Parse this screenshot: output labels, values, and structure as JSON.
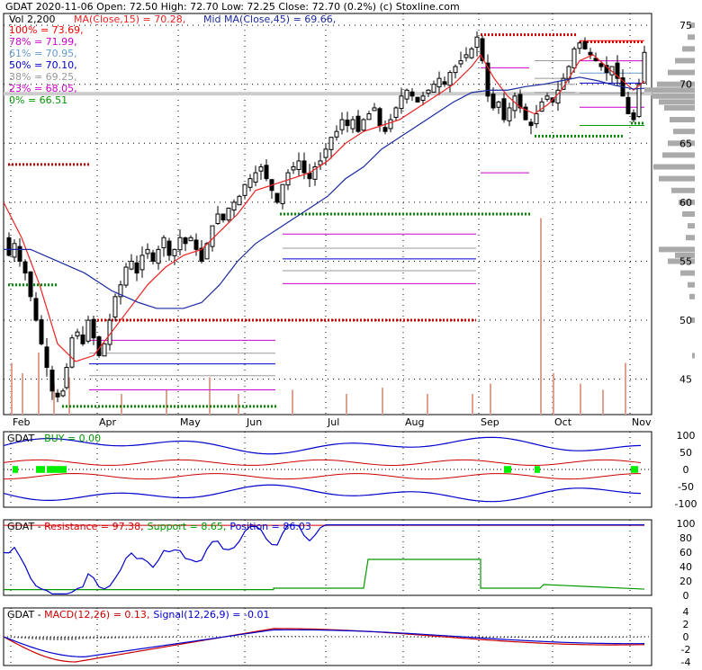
{
  "header": {
    "line1": "GDAT  2020-11-06 Open: 72.50  High: 72.70  Low: 72.25  Close: 72.70 (0.2%)  (c) Stoxline.com",
    "vol": "Vol 2,200",
    "ma15": "MA(Close,15) = 70.28,",
    "ma45": "Mid MA(Close,45) = 69.66,"
  },
  "fib_levels": [
    {
      "label": "100% = 73.69,",
      "value": 73.69,
      "color": "#ff0000"
    },
    {
      "label": "78% = 71.99,",
      "value": 71.99,
      "color": "#cc00cc"
    },
    {
      "label": "61% = 70.95,",
      "value": 70.95,
      "color": "#6699cc"
    },
    {
      "label": "50% = 70.10,",
      "value": 70.1,
      "color": "#0000cc"
    },
    {
      "label": "38% = 69.25,",
      "value": 69.25,
      "color": "#999999"
    },
    {
      "label": "23% = 68.05,",
      "value": 68.05,
      "color": "#cc00cc"
    },
    {
      "label": "0% = 66.51",
      "value": 66.51,
      "color": "#009900"
    }
  ],
  "colors": {
    "ma15": "#ee2222",
    "ma45": "#1a2aa0",
    "support": "#008800",
    "resistance": "#cc0000",
    "volume": "#e0a090",
    "profile": "#aaaaaa"
  },
  "x_months": [
    "Feb",
    "Apr",
    "May",
    "Jun",
    "Jul",
    "Aug",
    "Sep",
    "Oct",
    "Nov"
  ],
  "main_y_ticks": [
    "75",
    "70",
    "65",
    "60",
    "55",
    "50",
    "45"
  ],
  "buy_panel": {
    "title_a": "GDAT - ",
    "title_b": "BUY = 0.00",
    "ticks": [
      "100",
      "50",
      "0",
      "-50",
      "-100"
    ]
  },
  "res_panel": {
    "title_a": "GDAT - ",
    "res": "Resistance = 97.38,",
    "sup": "Support = 8.65,",
    "pos": "Position = 86.03",
    "ticks": [
      "100",
      "80",
      "60",
      "40",
      "20",
      "0"
    ]
  },
  "macd_panel": {
    "title_a": "GDAT - ",
    "macd": "MACD(12,26) = 0.13,",
    "sig": "Signal(12,26,9) = -0.01",
    "ticks": [
      "4",
      "2",
      "0",
      "-2",
      "-4"
    ]
  },
  "chart_data": {
    "type": "candlestick",
    "ylim": [
      42,
      76
    ],
    "close_path": [
      [
        0,
        57
      ],
      [
        6,
        55.5
      ],
      [
        12,
        56.5
      ],
      [
        18,
        55
      ],
      [
        24,
        54
      ],
      [
        30,
        52
      ],
      [
        36,
        50
      ],
      [
        42,
        48
      ],
      [
        48,
        46
      ],
      [
        54,
        44
      ],
      [
        60,
        43.5
      ],
      [
        66,
        44
      ],
      [
        70,
        46
      ],
      [
        76,
        48.5
      ],
      [
        82,
        49
      ],
      [
        88,
        48
      ],
      [
        94,
        50
      ],
      [
        100,
        48.5
      ],
      [
        106,
        47
      ],
      [
        112,
        48
      ],
      [
        118,
        50
      ],
      [
        124,
        52
      ],
      [
        130,
        53
      ],
      [
        136,
        54.5
      ],
      [
        142,
        55
      ],
      [
        148,
        54
      ],
      [
        154,
        55.5
      ],
      [
        160,
        56
      ],
      [
        166,
        55
      ],
      [
        172,
        56
      ],
      [
        178,
        57
      ],
      [
        184,
        55.5
      ],
      [
        190,
        56
      ],
      [
        196,
        57
      ],
      [
        202,
        56.5
      ],
      [
        208,
        57
      ],
      [
        214,
        56
      ],
      [
        220,
        55
      ],
      [
        226,
        56.5
      ],
      [
        232,
        58
      ],
      [
        238,
        59
      ],
      [
        244,
        58.5
      ],
      [
        250,
        59.5
      ],
      [
        256,
        60
      ],
      [
        262,
        60.5
      ],
      [
        268,
        61.5
      ],
      [
        274,
        62
      ],
      [
        280,
        62.5
      ],
      [
        286,
        63
      ],
      [
        292,
        62
      ],
      [
        298,
        61
      ],
      [
        304,
        60
      ],
      [
        310,
        61.5
      ],
      [
        316,
        62.5
      ],
      [
        322,
        63
      ],
      [
        328,
        63.5
      ],
      [
        334,
        62.5
      ],
      [
        340,
        62
      ],
      [
        346,
        63
      ],
      [
        352,
        63.5
      ],
      [
        358,
        64.5
      ],
      [
        364,
        65.5
      ],
      [
        370,
        66
      ],
      [
        376,
        67
      ],
      [
        382,
        66.5
      ],
      [
        388,
        67
      ],
      [
        394,
        66
      ],
      [
        400,
        67
      ],
      [
        406,
        67.5
      ],
      [
        412,
        68
      ],
      [
        418,
        66.5
      ],
      [
        424,
        66
      ],
      [
        430,
        67
      ],
      [
        436,
        68
      ],
      [
        442,
        69
      ],
      [
        448,
        69.5
      ],
      [
        454,
        69
      ],
      [
        460,
        68.5
      ],
      [
        466,
        69
      ],
      [
        472,
        69.5
      ],
      [
        478,
        70
      ],
      [
        484,
        70.5
      ],
      [
        490,
        70
      ],
      [
        496,
        71
      ],
      [
        502,
        71.5
      ],
      [
        508,
        72
      ],
      [
        514,
        72.5
      ],
      [
        520,
        73
      ],
      [
        526,
        74
      ],
      [
        532,
        72
      ],
      [
        538,
        69
      ],
      [
        544,
        68
      ],
      [
        550,
        68.5
      ],
      [
        556,
        67
      ],
      [
        562,
        68
      ],
      [
        568,
        69
      ],
      [
        574,
        68
      ],
      [
        580,
        67
      ],
      [
        586,
        66.5
      ],
      [
        592,
        67.5
      ],
      [
        598,
        68.5
      ],
      [
        604,
        69
      ],
      [
        610,
        68.5
      ],
      [
        616,
        69.5
      ],
      [
        622,
        70.5
      ],
      [
        628,
        71.5
      ],
      [
        634,
        73
      ],
      [
        640,
        73.5
      ],
      [
        646,
        73
      ],
      [
        652,
        72.5
      ],
      [
        658,
        72
      ],
      [
        664,
        71.5
      ],
      [
        670,
        71
      ],
      [
        676,
        71.5
      ],
      [
        682,
        70.5
      ],
      [
        688,
        69
      ],
      [
        694,
        67.5
      ],
      [
        700,
        67
      ],
      [
        706,
        70
      ],
      [
        712,
        72.7
      ]
    ],
    "ma15_path": [
      [
        0,
        60
      ],
      [
        20,
        57
      ],
      [
        40,
        53
      ],
      [
        60,
        48
      ],
      [
        80,
        46.5
      ],
      [
        100,
        47
      ],
      [
        120,
        49
      ],
      [
        140,
        51
      ],
      [
        160,
        53
      ],
      [
        180,
        54.5
      ],
      [
        200,
        55.5
      ],
      [
        220,
        56
      ],
      [
        240,
        57.5
      ],
      [
        260,
        59
      ],
      [
        280,
        61
      ],
      [
        300,
        61.5
      ],
      [
        320,
        62
      ],
      [
        340,
        62.5
      ],
      [
        360,
        63.5
      ],
      [
        380,
        65
      ],
      [
        400,
        66
      ],
      [
        420,
        66.5
      ],
      [
        440,
        67
      ],
      [
        460,
        68
      ],
      [
        480,
        69
      ],
      [
        500,
        70
      ],
      [
        520,
        71.5
      ],
      [
        530,
        72.5
      ],
      [
        545,
        70.5
      ],
      [
        560,
        69
      ],
      [
        575,
        68
      ],
      [
        590,
        67.5
      ],
      [
        605,
        68.3
      ],
      [
        620,
        69.5
      ],
      [
        640,
        72
      ],
      [
        655,
        72.5
      ],
      [
        670,
        71.5
      ],
      [
        685,
        70.5
      ],
      [
        700,
        69.5
      ],
      [
        712,
        70.28
      ]
    ],
    "ma45_path": [
      [
        0,
        56
      ],
      [
        30,
        56
      ],
      [
        60,
        55
      ],
      [
        90,
        54
      ],
      [
        120,
        52.5
      ],
      [
        150,
        51.5
      ],
      [
        170,
        51
      ],
      [
        200,
        51
      ],
      [
        220,
        51.5
      ],
      [
        240,
        53
      ],
      [
        260,
        55
      ],
      [
        280,
        56.5
      ],
      [
        300,
        57.5
      ],
      [
        320,
        58.5
      ],
      [
        340,
        59.5
      ],
      [
        360,
        60.5
      ],
      [
        380,
        62
      ],
      [
        400,
        63
      ],
      [
        420,
        64.5
      ],
      [
        440,
        65.5
      ],
      [
        460,
        66.5
      ],
      [
        480,
        67.5
      ],
      [
        500,
        68.5
      ],
      [
        520,
        69.3
      ],
      [
        540,
        69.5
      ],
      [
        560,
        69.5
      ],
      [
        580,
        69.8
      ],
      [
        600,
        70
      ],
      [
        620,
        70.3
      ],
      [
        640,
        70.6
      ],
      [
        660,
        70.3
      ],
      [
        680,
        69.9
      ],
      [
        700,
        69.6
      ],
      [
        712,
        69.66
      ]
    ],
    "support_resistance_lines": [
      {
        "x": [
          5,
          97
        ],
        "y": 63.2,
        "kind": "resistance"
      },
      {
        "x": [
          5,
          60
        ],
        "y": 53.0,
        "kind": "support"
      },
      {
        "x": [
          100,
          525
        ],
        "y": 50.0,
        "kind": "resistance"
      },
      {
        "x": [
          65,
          305
        ],
        "y": 42.7,
        "kind": "support"
      },
      {
        "x": [
          307,
          585
        ],
        "y": 59.0,
        "kind": "support"
      },
      {
        "x": [
          530,
          637
        ],
        "y": 74.2,
        "kind": "resistance"
      },
      {
        "x": [
          590,
          688
        ],
        "y": 65.6,
        "kind": "support"
      },
      {
        "x": [
          640,
          712
        ],
        "y": 73.6,
        "kind": "resistance"
      },
      {
        "x": [
          697,
          712
        ],
        "y": 66.7,
        "kind": "support"
      }
    ],
    "fib_range_a": {
      "x": [
        95,
        302
      ],
      "levels": [
        48.3,
        47.2,
        46.3,
        45.3,
        44.1
      ]
    },
    "fib_range_b": {
      "x": [
        310,
        525
      ],
      "levels": [
        57.3,
        56.1,
        55.2,
        54.2,
        53.1
      ]
    },
    "fib_range_c": {
      "x": [
        530,
        584
      ],
      "levels": [
        71.4,
        62.5
      ]
    },
    "volume_spikes": [
      [
        8,
        0.25
      ],
      [
        20,
        0.2
      ],
      [
        38,
        0.3
      ],
      [
        55,
        0.15
      ],
      [
        72,
        0.18
      ],
      [
        130,
        0.1
      ],
      [
        180,
        0.12
      ],
      [
        228,
        0.18
      ],
      [
        260,
        0.1
      ],
      [
        320,
        0.12
      ],
      [
        380,
        0.1
      ],
      [
        420,
        0.13
      ],
      [
        470,
        0.1
      ],
      [
        520,
        0.1
      ],
      [
        540,
        0.15
      ],
      [
        596,
        0.95
      ],
      [
        610,
        0.2
      ],
      [
        640,
        0.15
      ],
      [
        665,
        0.12
      ],
      [
        690,
        0.25
      ]
    ],
    "buy": {
      "upper_band": 95,
      "lower_band": -95
    },
    "resistance_panel": {
      "resistance": 97.38,
      "support": 8.65,
      "position": 86.03
    },
    "macd": {
      "macd": 0.13,
      "signal": -0.01
    }
  }
}
